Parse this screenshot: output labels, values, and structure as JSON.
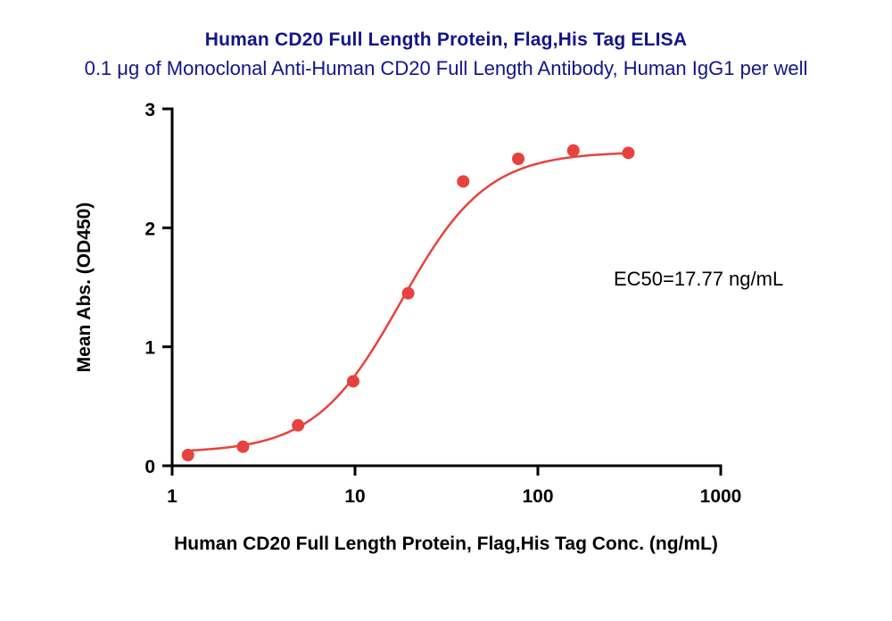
{
  "chart_data": {
    "type": "scatter",
    "title": "Human CD20 Full Length Protein, Flag,His Tag ELISA",
    "subtitle": "0.1 μg of Monoclonal Anti-Human CD20 Full Length Antibody, Human IgG1 per well",
    "xlabel": "Human CD20 Full Length Protein, Flag,His Tag Conc. (ng/mL)",
    "ylabel": "Mean Abs. (OD450)",
    "annotation": "EC50=17.77 ng/mL",
    "x_scale": "log10",
    "xlim": [
      1,
      1000
    ],
    "ylim": [
      0,
      3
    ],
    "x_ticks": [
      "1",
      "10",
      "100",
      "1000"
    ],
    "x_tick_values": [
      1,
      10,
      100,
      1000
    ],
    "y_ticks": [
      "0",
      "1",
      "2",
      "3"
    ],
    "y_tick_values": [
      0,
      1,
      2,
      3
    ],
    "grid": false,
    "legend": "none",
    "points": [
      {
        "x": 1.22,
        "y": 0.09
      },
      {
        "x": 2.44,
        "y": 0.16
      },
      {
        "x": 4.88,
        "y": 0.34
      },
      {
        "x": 9.77,
        "y": 0.71
      },
      {
        "x": 19.53,
        "y": 1.45
      },
      {
        "x": 39.06,
        "y": 2.39
      },
      {
        "x": 78.13,
        "y": 2.58
      },
      {
        "x": 156.25,
        "y": 2.65
      },
      {
        "x": 312.5,
        "y": 2.63
      }
    ],
    "fit": {
      "model": "4PL",
      "bottom": 0.11,
      "top": 2.64,
      "ec50": 17.77,
      "hill": 1.85
    },
    "colors": {
      "point_color": "#e8423e",
      "line_color": "#e8423e",
      "axis_color": "#000000",
      "title_color": "#14148c",
      "subtitle_color": "#14148c"
    }
  }
}
